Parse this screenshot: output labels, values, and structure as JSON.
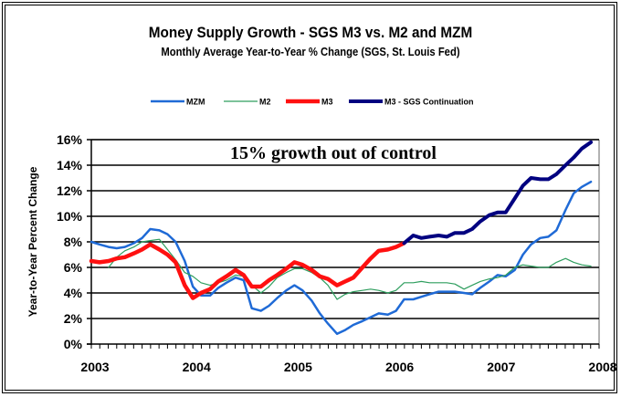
{
  "chart_data": {
    "type": "line",
    "title": "Money Supply Growth - SGS M3 vs. M2 and MZM",
    "subtitle": "Monthly Average Year-to-Year % Change  (SGS, St. Louis Fed)",
    "xlabel": "",
    "ylabel": "Year-to-Year Percent Change",
    "xlim": [
      2003,
      2008
    ],
    "ylim": [
      0,
      16
    ],
    "x_ticks": [
      "2003",
      "2004",
      "2005",
      "2006",
      "2007",
      "2008"
    ],
    "y_ticks": [
      "0%",
      "2%",
      "4%",
      "6%",
      "8%",
      "10%",
      "12%",
      "14%",
      "16%"
    ],
    "grid": true,
    "legend_position": "top",
    "annotation": "15% growth out of control",
    "series": [
      {
        "name": "MZM",
        "color": "#1f6ad6",
        "points": [
          [
            2003.0,
            8.0
          ],
          [
            2003.08,
            7.8
          ],
          [
            2003.17,
            7.6
          ],
          [
            2003.25,
            7.5
          ],
          [
            2003.33,
            7.6
          ],
          [
            2003.42,
            7.9
          ],
          [
            2003.5,
            8.3
          ],
          [
            2003.58,
            9.0
          ],
          [
            2003.67,
            8.9
          ],
          [
            2003.75,
            8.6
          ],
          [
            2003.83,
            8.0
          ],
          [
            2003.92,
            6.5
          ],
          [
            2004.0,
            4.5
          ],
          [
            2004.08,
            3.8
          ],
          [
            2004.17,
            3.8
          ],
          [
            2004.25,
            4.4
          ],
          [
            2004.33,
            4.8
          ],
          [
            2004.42,
            5.2
          ],
          [
            2004.5,
            5.0
          ],
          [
            2004.58,
            2.8
          ],
          [
            2004.67,
            2.6
          ],
          [
            2004.75,
            3.0
          ],
          [
            2004.83,
            3.6
          ],
          [
            2004.92,
            4.2
          ],
          [
            2005.0,
            4.6
          ],
          [
            2005.08,
            4.2
          ],
          [
            2005.17,
            3.4
          ],
          [
            2005.25,
            2.4
          ],
          [
            2005.33,
            1.6
          ],
          [
            2005.42,
            0.8
          ],
          [
            2005.5,
            1.1
          ],
          [
            2005.58,
            1.5
          ],
          [
            2005.67,
            1.8
          ],
          [
            2005.75,
            2.1
          ],
          [
            2005.83,
            2.4
          ],
          [
            2005.92,
            2.3
          ],
          [
            2006.0,
            2.6
          ],
          [
            2006.08,
            3.5
          ],
          [
            2006.17,
            3.5
          ],
          [
            2006.25,
            3.7
          ],
          [
            2006.33,
            3.9
          ],
          [
            2006.42,
            4.1
          ],
          [
            2006.5,
            4.1
          ],
          [
            2006.58,
            4.1
          ],
          [
            2006.67,
            4.0
          ],
          [
            2006.75,
            3.9
          ],
          [
            2006.83,
            4.4
          ],
          [
            2006.92,
            4.9
          ],
          [
            2007.0,
            5.4
          ],
          [
            2007.08,
            5.3
          ],
          [
            2007.17,
            5.8
          ],
          [
            2007.25,
            7.0
          ],
          [
            2007.33,
            7.8
          ],
          [
            2007.42,
            8.3
          ],
          [
            2007.5,
            8.4
          ],
          [
            2007.58,
            8.9
          ],
          [
            2007.67,
            10.5
          ],
          [
            2007.75,
            11.8
          ],
          [
            2007.83,
            12.3
          ],
          [
            2007.92,
            12.7
          ]
        ]
      },
      {
        "name": "M2",
        "color": "#2e9e5e",
        "points": [
          [
            2003.17,
            6.0
          ],
          [
            2003.25,
            6.8
          ],
          [
            2003.33,
            7.3
          ],
          [
            2003.42,
            7.6
          ],
          [
            2003.5,
            8.0
          ],
          [
            2003.58,
            8.1
          ],
          [
            2003.67,
            8.2
          ],
          [
            2003.75,
            7.4
          ],
          [
            2003.83,
            6.6
          ],
          [
            2003.92,
            5.6
          ],
          [
            2004.0,
            5.3
          ],
          [
            2004.08,
            4.8
          ],
          [
            2004.17,
            4.6
          ],
          [
            2004.25,
            4.8
          ],
          [
            2004.33,
            5.0
          ],
          [
            2004.42,
            5.4
          ],
          [
            2004.5,
            5.3
          ],
          [
            2004.58,
            4.6
          ],
          [
            2004.67,
            4.0
          ],
          [
            2004.75,
            4.5
          ],
          [
            2004.83,
            5.2
          ],
          [
            2004.92,
            5.6
          ],
          [
            2005.0,
            5.9
          ],
          [
            2005.08,
            5.9
          ],
          [
            2005.17,
            5.6
          ],
          [
            2005.25,
            5.2
          ],
          [
            2005.33,
            4.6
          ],
          [
            2005.42,
            3.5
          ],
          [
            2005.5,
            3.9
          ],
          [
            2005.58,
            4.1
          ],
          [
            2005.67,
            4.2
          ],
          [
            2005.75,
            4.3
          ],
          [
            2005.83,
            4.2
          ],
          [
            2005.92,
            4.0
          ],
          [
            2006.0,
            4.2
          ],
          [
            2006.08,
            4.8
          ],
          [
            2006.17,
            4.8
          ],
          [
            2006.25,
            4.9
          ],
          [
            2006.33,
            4.8
          ],
          [
            2006.42,
            4.8
          ],
          [
            2006.5,
            4.8
          ],
          [
            2006.58,
            4.7
          ],
          [
            2006.67,
            4.3
          ],
          [
            2006.75,
            4.6
          ],
          [
            2006.83,
            4.9
          ],
          [
            2006.92,
            5.1
          ],
          [
            2007.0,
            5.2
          ],
          [
            2007.08,
            5.4
          ],
          [
            2007.17,
            6.0
          ],
          [
            2007.25,
            6.2
          ],
          [
            2007.33,
            6.1
          ],
          [
            2007.42,
            6.0
          ],
          [
            2007.5,
            6.0
          ],
          [
            2007.58,
            6.4
          ],
          [
            2007.67,
            6.7
          ],
          [
            2007.75,
            6.4
          ],
          [
            2007.83,
            6.2
          ],
          [
            2007.92,
            6.1
          ]
        ]
      },
      {
        "name": "M3",
        "color": "#ff1010",
        "points": [
          [
            2003.0,
            6.5
          ],
          [
            2003.08,
            6.4
          ],
          [
            2003.17,
            6.5
          ],
          [
            2003.25,
            6.7
          ],
          [
            2003.33,
            6.8
          ],
          [
            2003.42,
            7.1
          ],
          [
            2003.5,
            7.4
          ],
          [
            2003.58,
            7.8
          ],
          [
            2003.67,
            7.4
          ],
          [
            2003.75,
            7.0
          ],
          [
            2003.83,
            6.4
          ],
          [
            2003.92,
            4.6
          ],
          [
            2004.0,
            3.6
          ],
          [
            2004.08,
            4.0
          ],
          [
            2004.17,
            4.3
          ],
          [
            2004.25,
            4.9
          ],
          [
            2004.33,
            5.3
          ],
          [
            2004.42,
            5.8
          ],
          [
            2004.5,
            5.4
          ],
          [
            2004.58,
            4.5
          ],
          [
            2004.67,
            4.5
          ],
          [
            2004.75,
            5.0
          ],
          [
            2004.83,
            5.4
          ],
          [
            2004.92,
            5.9
          ],
          [
            2005.0,
            6.4
          ],
          [
            2005.08,
            6.2
          ],
          [
            2005.17,
            5.8
          ],
          [
            2005.25,
            5.3
          ],
          [
            2005.33,
            5.1
          ],
          [
            2005.42,
            4.6
          ],
          [
            2005.5,
            4.9
          ],
          [
            2005.58,
            5.2
          ],
          [
            2005.67,
            6.0
          ],
          [
            2005.75,
            6.7
          ],
          [
            2005.83,
            7.3
          ],
          [
            2005.92,
            7.4
          ],
          [
            2006.0,
            7.6
          ],
          [
            2006.08,
            7.9
          ]
        ]
      },
      {
        "name": "M3 - SGS Continuation",
        "color": "#000080",
        "points": [
          [
            2006.08,
            7.9
          ],
          [
            2006.17,
            8.5
          ],
          [
            2006.25,
            8.3
          ],
          [
            2006.33,
            8.4
          ],
          [
            2006.42,
            8.5
          ],
          [
            2006.5,
            8.4
          ],
          [
            2006.58,
            8.7
          ],
          [
            2006.67,
            8.7
          ],
          [
            2006.75,
            9.0
          ],
          [
            2006.83,
            9.6
          ],
          [
            2006.92,
            10.1
          ],
          [
            2007.0,
            10.3
          ],
          [
            2007.08,
            10.3
          ],
          [
            2007.17,
            11.4
          ],
          [
            2007.25,
            12.4
          ],
          [
            2007.33,
            13.0
          ],
          [
            2007.42,
            12.9
          ],
          [
            2007.5,
            12.9
          ],
          [
            2007.58,
            13.3
          ],
          [
            2007.67,
            14.0
          ],
          [
            2007.75,
            14.6
          ],
          [
            2007.83,
            15.3
          ],
          [
            2007.92,
            15.8
          ]
        ]
      }
    ]
  }
}
